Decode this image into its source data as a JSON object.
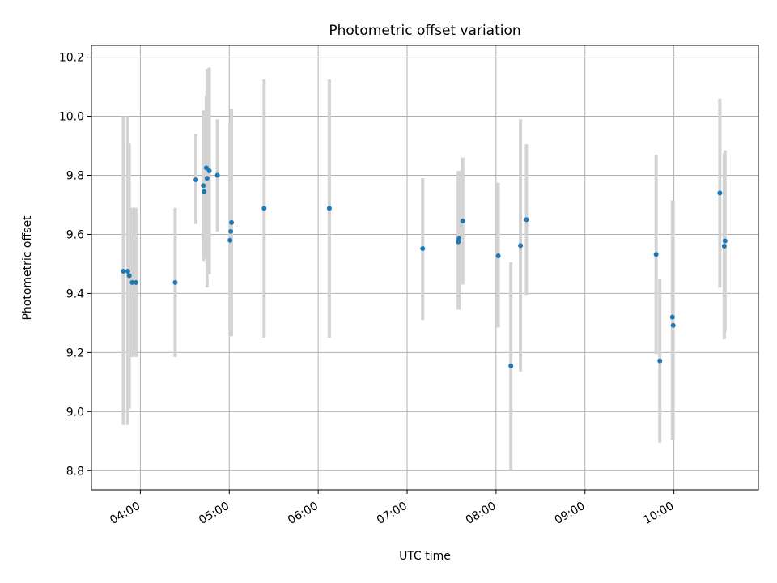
{
  "chart_data": {
    "type": "scatter",
    "title": "Photometric offset variation",
    "xlabel": "UTC time",
    "ylabel": "Photometric offset",
    "x_unit": "UTC time (HH:MM)",
    "xlim": [
      "03:27",
      "10:57"
    ],
    "ylim": [
      8.735,
      10.24
    ],
    "grid": true,
    "x_ticks": [
      "04:00",
      "05:00",
      "06:00",
      "07:00",
      "08:00",
      "09:00",
      "10:00"
    ],
    "y_ticks": [
      8.8,
      9.0,
      9.2,
      9.4,
      9.6,
      9.8,
      10.0,
      10.2
    ],
    "point_color": "#1f77b4",
    "errorbar_color": "#d3d3d3",
    "points": [
      {
        "x": "03:48:30",
        "y": 9.475,
        "lo": 8.955,
        "hi": 10.0
      },
      {
        "x": "03:51:30",
        "y": 9.475,
        "lo": 8.955,
        "hi": 10.0
      },
      {
        "x": "03:52:30",
        "y": 9.46,
        "lo": 9.01,
        "hi": 9.91
      },
      {
        "x": "03:54:30",
        "y": 9.437,
        "lo": 9.185,
        "hi": 9.69
      },
      {
        "x": "03:57:00",
        "y": 9.437,
        "lo": 9.185,
        "hi": 9.69
      },
      {
        "x": "04:23:30",
        "y": 9.437,
        "lo": 9.185,
        "hi": 9.69
      },
      {
        "x": "04:37:30",
        "y": 9.785,
        "lo": 9.635,
        "hi": 9.94
      },
      {
        "x": "04:42:30",
        "y": 9.765,
        "lo": 9.51,
        "hi": 10.02
      },
      {
        "x": "04:43:00",
        "y": 9.745,
        "lo": 9.52,
        "hi": 9.97
      },
      {
        "x": "04:44:30",
        "y": 9.825,
        "lo": 9.58,
        "hi": 10.07
      },
      {
        "x": "04:45:00",
        "y": 9.79,
        "lo": 9.42,
        "hi": 10.16
      },
      {
        "x": "04:46:30",
        "y": 9.815,
        "lo": 9.465,
        "hi": 10.165
      },
      {
        "x": "04:52:00",
        "y": 9.8,
        "lo": 9.61,
        "hi": 9.99
      },
      {
        "x": "05:00:30",
        "y": 9.58,
        "lo": 9.255,
        "hi": 9.98
      },
      {
        "x": "05:01:00",
        "y": 9.61,
        "lo": 9.255,
        "hi": 9.97
      },
      {
        "x": "05:01:30",
        "y": 9.64,
        "lo": 9.255,
        "hi": 10.025
      },
      {
        "x": "05:23:30",
        "y": 9.688,
        "lo": 9.25,
        "hi": 10.125
      },
      {
        "x": "06:07:30",
        "y": 9.688,
        "lo": 9.25,
        "hi": 10.125
      },
      {
        "x": "07:10:30",
        "y": 9.552,
        "lo": 9.31,
        "hi": 9.79
      },
      {
        "x": "07:34:30",
        "y": 9.575,
        "lo": 9.345,
        "hi": 9.815
      },
      {
        "x": "07:35:00",
        "y": 9.585,
        "lo": 9.345,
        "hi": 9.815
      },
      {
        "x": "07:37:30",
        "y": 9.645,
        "lo": 9.43,
        "hi": 9.86
      },
      {
        "x": "08:01:30",
        "y": 9.527,
        "lo": 9.285,
        "hi": 9.775
      },
      {
        "x": "08:10:00",
        "y": 9.155,
        "lo": 8.8,
        "hi": 9.505
      },
      {
        "x": "08:16:30",
        "y": 9.562,
        "lo": 9.135,
        "hi": 9.99
      },
      {
        "x": "08:20:30",
        "y": 9.65,
        "lo": 9.395,
        "hi": 9.905
      },
      {
        "x": "09:48:00",
        "y": 9.532,
        "lo": 9.195,
        "hi": 9.87
      },
      {
        "x": "09:50:30",
        "y": 9.172,
        "lo": 8.895,
        "hi": 9.45
      },
      {
        "x": "09:59:00",
        "y": 9.32,
        "lo": 8.905,
        "hi": 9.715
      },
      {
        "x": "09:59:30",
        "y": 9.292,
        "lo": 8.905,
        "hi": 9.715
      },
      {
        "x": "10:31:00",
        "y": 9.74,
        "lo": 9.42,
        "hi": 10.06
      },
      {
        "x": "10:34:30",
        "y": 9.578,
        "lo": 9.27,
        "hi": 9.885
      },
      {
        "x": "10:34:00",
        "y": 9.56,
        "lo": 9.245,
        "hi": 9.875
      }
    ]
  }
}
